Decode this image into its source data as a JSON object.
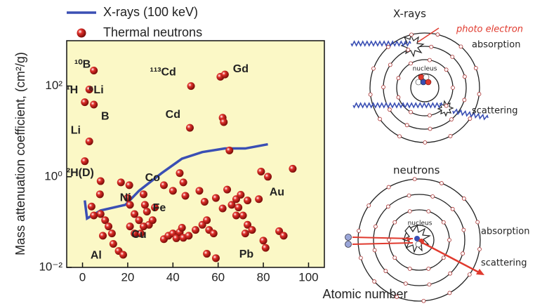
{
  "chart_data": {
    "type": "scatter",
    "xlabel": "Atomic number",
    "ylabel": "Mass attenuation coefficient, (cm²/g)",
    "xlim": [
      -7,
      107
    ],
    "ylim": [
      0.01,
      1000
    ],
    "ylog": true,
    "xticks": [
      0,
      20,
      40,
      60,
      80,
      100
    ],
    "yticks": [
      {
        "value": 0.01,
        "label": "10⁻²"
      },
      {
        "value": 1,
        "label": "10⁰"
      },
      {
        "value": 100,
        "label": "10²"
      }
    ],
    "background": "#fbf8c6",
    "legend": "top-left",
    "series": [
      {
        "name": "X-rays (100 keV)",
        "type": "line",
        "color": "#3a4fb4",
        "x": [
          1,
          2,
          8,
          19,
          25,
          35,
          44,
          53,
          63,
          72,
          82
        ],
        "values": [
          0.3,
          0.12,
          0.18,
          0.24,
          0.49,
          1.2,
          2.5,
          3.5,
          4.2,
          4.2,
          5.2
        ]
      },
      {
        "name": "Thermal neutrons",
        "type": "scatter",
        "color": "#e0302a",
        "x": [
          5,
          3,
          1,
          5,
          3,
          1,
          48,
          47.5,
          61,
          63,
          62,
          62.5,
          65,
          8,
          4,
          8,
          10,
          11.5,
          9,
          13,
          13.6,
          16,
          18,
          17,
          20.7,
          20,
          21,
          23,
          25,
          27,
          27.6,
          28.5,
          29.4,
          25.7,
          31,
          32,
          36,
          40,
          43,
          44.6,
          45.5,
          36,
          38,
          40,
          41.5,
          43,
          44.6,
          47,
          50,
          53,
          55,
          56,
          58,
          55,
          59,
          51.7,
          54,
          59,
          62,
          64,
          66,
          68,
          69,
          70,
          73,
          71,
          73,
          75,
          72,
          68,
          78,
          79,
          82,
          80,
          81,
          87,
          89,
          93,
          7.7,
          5,
          21,
          23,
          44,
          27
        ],
        "values": [
          220,
          84,
          44,
          39,
          6,
          2.2,
          100,
          12,
          160,
          180,
          20,
          16,
          3.8,
          0.8,
          0.22,
          0.15,
          0.11,
          0.08,
          0.05,
          0.056,
          0.033,
          0.023,
          0.019,
          0.75,
          0.65,
          0.34,
          0.24,
          0.15,
          0.11,
          0.41,
          0.24,
          0.17,
          0.087,
          0.056,
          0.11,
          0.21,
          0.65,
          0.49,
          1.2,
          0.75,
          0.38,
          0.042,
          0.05,
          0.056,
          0.044,
          0.06,
          0.045,
          0.05,
          0.067,
          0.087,
          0.11,
          0.067,
          0.056,
          0.02,
          0.016,
          0.49,
          0.28,
          0.34,
          0.2,
          0.52,
          0.24,
          0.32,
          0.21,
          0.4,
          0.3,
          0.14,
          0.087,
          0.067,
          0.056,
          0.14,
          0.32,
          1.3,
          1.0,
          0.039,
          0.027,
          0.063,
          0.05,
          1.5,
          0.41,
          0.14,
          0.08,
          0.056,
          0.075,
          0.08
        ]
      }
    ],
    "annotations": [
      {
        "text": "¹⁰B",
        "x": 0,
        "y": 295
      },
      {
        "text": "⁶Li",
        "x": 6,
        "y": 80
      },
      {
        "text": "¹H",
        "x": -4.6,
        "y": 80
      },
      {
        "text": "B",
        "x": 10,
        "y": 21
      },
      {
        "text": "Li",
        "x": -3,
        "y": 10.4
      },
      {
        "text": "²H(D)",
        "x": -1,
        "y": 1.2
      },
      {
        "text": "¹¹³Cd",
        "x": 35.6,
        "y": 200
      },
      {
        "text": "Gd",
        "x": 70,
        "y": 235
      },
      {
        "text": "Cd",
        "x": 40,
        "y": 23
      },
      {
        "text": "Co",
        "x": 31,
        "y": 0.93
      },
      {
        "text": "Ni",
        "x": 19,
        "y": 0.34
      },
      {
        "text": "Fe",
        "x": 34,
        "y": 0.2
      },
      {
        "text": "Cu",
        "x": 25,
        "y": 0.052
      },
      {
        "text": "Al",
        "x": 6,
        "y": 0.018
      },
      {
        "text": "Au",
        "x": 86,
        "y": 0.45
      },
      {
        "text": "Pb",
        "x": 72.5,
        "y": 0.019
      }
    ]
  },
  "diagram": {
    "xrays": {
      "title": "X-rays",
      "photo_electron": "photo electron",
      "absorption": "absorption",
      "nucleus": "nucleus",
      "scattering": "scattering"
    },
    "neutrons": {
      "title": "neutrons",
      "nucleus": "nucleus",
      "absorption": "absorption",
      "scattering": "scattering"
    }
  }
}
